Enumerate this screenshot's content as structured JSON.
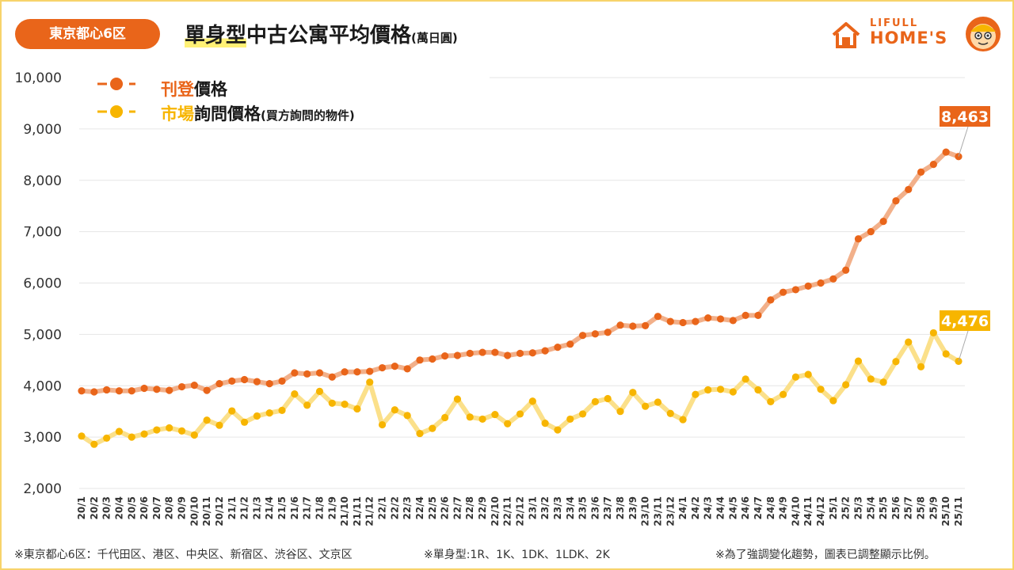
{
  "header": {
    "region_label": "東京都心6区",
    "title_highlight": "單身型",
    "title_rest": "中古公寓平均價格",
    "title_unit": "(萬日圓)"
  },
  "logo": {
    "line1": "LIFULL",
    "line2": "HOME'S"
  },
  "footnotes": {
    "left": "※東京都心6区：千代田区、港区、中央区、新宿区、渋谷区、文京区",
    "middle": "※單身型:1R、1K、1DK、1LDK、2K",
    "right": "※為了強調變化趨勢，圖表已調整顯示比例。"
  },
  "colors": {
    "listing": "#e9651a",
    "listing_line": "#f2b08a",
    "inquiry": "#f7b500",
    "inquiry_line": "#fbe08a",
    "badge": "#e9651a",
    "frame": "#f7d36b"
  },
  "chart_data": {
    "type": "line",
    "title": "單身型中古公寓平均價格(萬日圓)",
    "xlabel": "",
    "ylabel": "",
    "ylim": [
      2000,
      10000
    ],
    "yticks": [
      2000,
      3000,
      4000,
      5000,
      6000,
      7000,
      8000,
      9000,
      10000
    ],
    "ytick_labels": [
      "2,000",
      "3,000",
      "4,000",
      "5,000",
      "6,000",
      "7,000",
      "8,000",
      "9,000",
      "10,000"
    ],
    "grid": true,
    "legend_position": "top-left",
    "categories": [
      "20/1",
      "20/2",
      "20/3",
      "20/4",
      "20/5",
      "20/6",
      "20/7",
      "20/8",
      "20/9",
      "20/10",
      "20/11",
      "20/12",
      "21/1",
      "21/2",
      "21/3",
      "21/4",
      "21/5",
      "21/6",
      "21/7",
      "21/8",
      "21/9",
      "21/10",
      "21/11",
      "21/12",
      "22/1",
      "22/2",
      "22/3",
      "22/4",
      "22/5",
      "22/6",
      "22/7",
      "22/8",
      "22/9",
      "22/10",
      "22/11",
      "22/12",
      "23/1",
      "23/2",
      "23/3",
      "23/4",
      "23/5",
      "23/6",
      "23/7",
      "23/8",
      "23/9",
      "23/10",
      "23/11",
      "23/12",
      "24/1",
      "24/2",
      "24/3",
      "24/4",
      "24/5",
      "24/6",
      "24/7",
      "24/8",
      "24/9",
      "24/10",
      "24/11",
      "24/12",
      "25/1",
      "25/2",
      "25/3",
      "25/4",
      "25/5",
      "25/6",
      "25/7",
      "25/8",
      "25/9",
      "25/10",
      "25/11"
    ],
    "series": [
      {
        "name": "刊登價格",
        "legend_accent": "刊登",
        "legend_rest": "價格",
        "legend_note": "",
        "values": [
          3900,
          3880,
          3920,
          3900,
          3900,
          3950,
          3930,
          3910,
          3980,
          4010,
          3910,
          4040,
          4090,
          4120,
          4080,
          4040,
          4090,
          4250,
          4230,
          4250,
          4170,
          4270,
          4270,
          4280,
          4350,
          4380,
          4330,
          4500,
          4520,
          4580,
          4590,
          4630,
          4650,
          4650,
          4590,
          4630,
          4640,
          4680,
          4750,
          4810,
          4980,
          5010,
          5040,
          5180,
          5160,
          5170,
          5350,
          5250,
          5230,
          5250,
          5320,
          5300,
          5270,
          5370,
          5370,
          5670,
          5820,
          5870,
          5940,
          6000,
          6080,
          6250,
          6860,
          7000,
          7200,
          7600,
          7820,
          8160,
          8310,
          8550,
          8463
        ],
        "last_label": "8,463"
      },
      {
        "name": "市場詢問價格",
        "legend_accent": "市場",
        "legend_rest": "詢問價格",
        "legend_note": "(買方詢問的物件)",
        "values": [
          3020,
          2860,
          2980,
          3110,
          3000,
          3060,
          3140,
          3180,
          3120,
          3040,
          3330,
          3230,
          3510,
          3290,
          3410,
          3470,
          3520,
          3840,
          3620,
          3890,
          3660,
          3640,
          3550,
          4070,
          3240,
          3530,
          3420,
          3070,
          3170,
          3380,
          3740,
          3390,
          3350,
          3440,
          3260,
          3450,
          3700,
          3270,
          3140,
          3350,
          3450,
          3690,
          3750,
          3500,
          3870,
          3600,
          3680,
          3460,
          3340,
          3830,
          3920,
          3930,
          3880,
          4130,
          3920,
          3690,
          3830,
          4170,
          4220,
          3930,
          3710,
          4020,
          4480,
          4130,
          4070,
          4470,
          4850,
          4370,
          5030,
          4620,
          4476
        ],
        "last_label": "4,476"
      }
    ]
  }
}
